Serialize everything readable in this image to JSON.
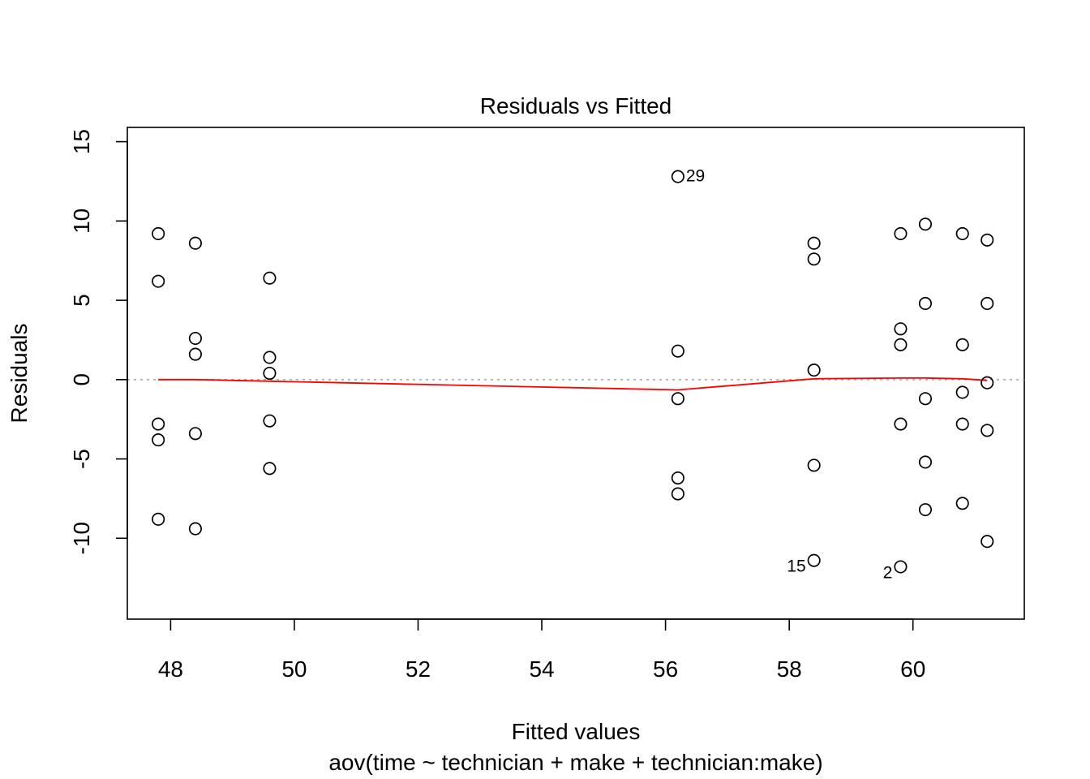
{
  "chart_data": {
    "type": "scatter",
    "title": "Residuals vs Fitted",
    "xlabel": "Fitted values",
    "subtitle": "aov(time ~ technician + make + technician:make)",
    "ylabel": "Residuals",
    "xlim": [
      47.3,
      61.8
    ],
    "ylim": [
      -15.1,
      15.9
    ],
    "x_ticks": [
      48,
      50,
      52,
      54,
      56,
      58,
      60
    ],
    "y_ticks": [
      15,
      10,
      5,
      0,
      -5,
      -10
    ],
    "grid": false,
    "reference_line": {
      "y": 0,
      "style": "dotted",
      "color": "#aaaaaa"
    },
    "smooth_line": {
      "color": "#ff0000",
      "points": [
        {
          "x": 47.8,
          "y": 0.0
        },
        {
          "x": 48.4,
          "y": 0.0
        },
        {
          "x": 49.6,
          "y": -0.1
        },
        {
          "x": 56.2,
          "y": -0.65
        },
        {
          "x": 58.4,
          "y": 0.05
        },
        {
          "x": 59.8,
          "y": 0.1
        },
        {
          "x": 60.2,
          "y": 0.1
        },
        {
          "x": 60.8,
          "y": 0.05
        },
        {
          "x": 61.2,
          "y": -0.05
        }
      ]
    },
    "points": [
      {
        "x": 47.8,
        "y": 9.2
      },
      {
        "x": 47.8,
        "y": 6.2
      },
      {
        "x": 47.8,
        "y": -2.8
      },
      {
        "x": 47.8,
        "y": -3.8
      },
      {
        "x": 47.8,
        "y": -8.8
      },
      {
        "x": 48.4,
        "y": 8.6
      },
      {
        "x": 48.4,
        "y": 2.6
      },
      {
        "x": 48.4,
        "y": 1.6
      },
      {
        "x": 48.4,
        "y": -3.4
      },
      {
        "x": 48.4,
        "y": -9.4
      },
      {
        "x": 49.6,
        "y": 6.4
      },
      {
        "x": 49.6,
        "y": 1.4
      },
      {
        "x": 49.6,
        "y": 0.4
      },
      {
        "x": 49.6,
        "y": -2.6
      },
      {
        "x": 49.6,
        "y": -5.6
      },
      {
        "x": 56.2,
        "y": 12.8,
        "label": "29",
        "label_side": "right"
      },
      {
        "x": 56.2,
        "y": 1.8
      },
      {
        "x": 56.2,
        "y": -1.2
      },
      {
        "x": 56.2,
        "y": -6.2
      },
      {
        "x": 56.2,
        "y": -7.2
      },
      {
        "x": 58.4,
        "y": 8.6
      },
      {
        "x": 58.4,
        "y": 7.6
      },
      {
        "x": 58.4,
        "y": 0.6
      },
      {
        "x": 58.4,
        "y": -5.4
      },
      {
        "x": 58.4,
        "y": -11.4,
        "label": "15",
        "label_side": "left"
      },
      {
        "x": 59.8,
        "y": 9.2
      },
      {
        "x": 59.8,
        "y": 3.2
      },
      {
        "x": 59.8,
        "y": 2.2
      },
      {
        "x": 59.8,
        "y": -2.8
      },
      {
        "x": 59.8,
        "y": -11.8,
        "label": "2",
        "label_side": "left"
      },
      {
        "x": 60.2,
        "y": 9.8
      },
      {
        "x": 60.2,
        "y": 4.8
      },
      {
        "x": 60.2,
        "y": -1.2
      },
      {
        "x": 60.2,
        "y": -5.2
      },
      {
        "x": 60.2,
        "y": -8.2
      },
      {
        "x": 60.8,
        "y": 9.2
      },
      {
        "x": 60.8,
        "y": 2.2
      },
      {
        "x": 60.8,
        "y": -0.8
      },
      {
        "x": 60.8,
        "y": -2.8
      },
      {
        "x": 60.8,
        "y": -7.8
      },
      {
        "x": 61.2,
        "y": 8.8
      },
      {
        "x": 61.2,
        "y": 4.8
      },
      {
        "x": 61.2,
        "y": -0.2
      },
      {
        "x": 61.2,
        "y": -3.2
      },
      {
        "x": 61.2,
        "y": -10.2
      }
    ]
  }
}
